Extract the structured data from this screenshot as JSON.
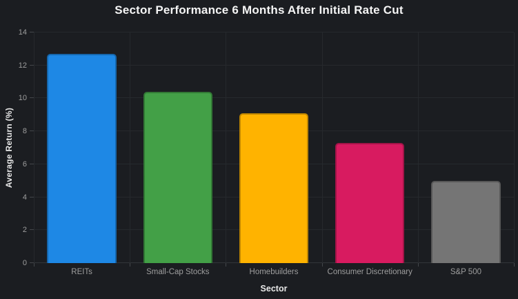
{
  "colors": {
    "background": "#1b1d21",
    "grid": "#26292d",
    "zero_line": "#33363a",
    "tick": "#44474b",
    "tick_label": "#9e9e9e",
    "axis_title": "#e8e8e8",
    "title": "#f5f5f5"
  },
  "chart_data": {
    "type": "bar",
    "title": "Sector Performance 6 Months After Initial Rate Cut",
    "xlabel": "Sector",
    "ylabel": "Average Return (%)",
    "categories": [
      "REITs",
      "Small-Cap Stocks",
      "Homebuilders",
      "Consumer Discretionary",
      "S&P 500"
    ],
    "values": [
      12.7,
      10.4,
      9.1,
      7.3,
      5.0
    ],
    "bar_colors": [
      "#1e88e5",
      "#43a047",
      "#ffb300",
      "#d81b60",
      "#757575"
    ],
    "ylim": [
      0,
      14
    ],
    "yticks": [
      0,
      2,
      4,
      6,
      8,
      10,
      12,
      14
    ],
    "grid": true,
    "legend_position": "none"
  }
}
